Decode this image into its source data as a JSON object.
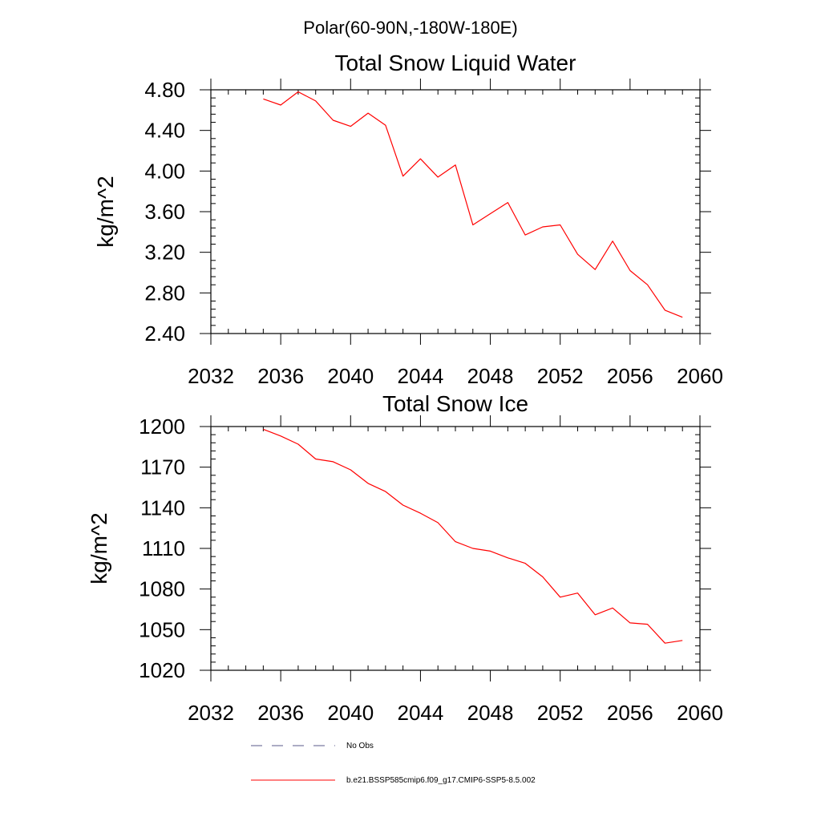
{
  "page_title": "Polar(60-90N,-180W-180E)",
  "chart_data": [
    {
      "type": "line",
      "title": "Total Snow Liquid Water",
      "xlabel": "",
      "ylabel": "kg/m^2",
      "xlim": [
        2032,
        2060
      ],
      "ylim": [
        2.4,
        4.8
      ],
      "xticks": [
        2032,
        2036,
        2040,
        2044,
        2048,
        2052,
        2056,
        2060
      ],
      "xtick_labels": [
        "2032",
        "2036",
        "2040",
        "2044",
        "2048",
        "2052",
        "2056",
        "2060"
      ],
      "yticks": [
        2.4,
        2.8,
        3.2,
        3.6,
        4.0,
        4.4,
        4.8
      ],
      "ytick_labels": [
        "2.40",
        "2.80",
        "3.20",
        "3.60",
        "4.00",
        "4.40",
        "4.80"
      ],
      "grid": false,
      "series": [
        {
          "name": "b.e21.BSSP585cmip6.f09_g17.CMIP6-SSP5-8.5.002",
          "color": "#ff0000",
          "x": [
            2035,
            2036,
            2037,
            2038,
            2039,
            2040,
            2041,
            2042,
            2043,
            2044,
            2045,
            2046,
            2047,
            2048,
            2049,
            2050,
            2051,
            2052,
            2053,
            2054,
            2055,
            2056,
            2057,
            2058,
            2059
          ],
          "values": [
            4.71,
            4.65,
            4.78,
            4.69,
            4.5,
            4.44,
            4.57,
            4.45,
            3.95,
            4.12,
            3.94,
            4.06,
            3.47,
            3.58,
            3.69,
            3.37,
            3.45,
            3.47,
            3.18,
            3.03,
            3.31,
            3.02,
            2.88,
            2.63,
            2.56
          ]
        }
      ]
    },
    {
      "type": "line",
      "title": "Total Snow Ice",
      "xlabel": "",
      "ylabel": "kg/m^2",
      "xlim": [
        2032,
        2060
      ],
      "ylim": [
        1020,
        1200
      ],
      "xticks": [
        2032,
        2036,
        2040,
        2044,
        2048,
        2052,
        2056,
        2060
      ],
      "xtick_labels": [
        "2032",
        "2036",
        "2040",
        "2044",
        "2048",
        "2052",
        "2056",
        "2060"
      ],
      "yticks": [
        1020,
        1050,
        1080,
        1110,
        1140,
        1170,
        1200
      ],
      "ytick_labels": [
        "1020",
        "1050",
        "1080",
        "1110",
        "1140",
        "1170",
        "1200"
      ],
      "grid": false,
      "series": [
        {
          "name": "b.e21.BSSP585cmip6.f09_g17.CMIP6-SSP5-8.5.002",
          "color": "#ff0000",
          "x": [
            2035,
            2036,
            2037,
            2038,
            2039,
            2040,
            2041,
            2042,
            2043,
            2044,
            2045,
            2046,
            2047,
            2048,
            2049,
            2050,
            2051,
            2052,
            2053,
            2054,
            2055,
            2056,
            2057,
            2058,
            2059
          ],
          "values": [
            1198,
            1193,
            1187,
            1176,
            1174,
            1168,
            1158,
            1152,
            1142,
            1136,
            1129,
            1115,
            1110,
            1108,
            1103,
            1099,
            1089,
            1074,
            1077,
            1061,
            1066,
            1055,
            1054,
            1040,
            1042
          ]
        }
      ]
    }
  ],
  "legend": {
    "placement": "bottom",
    "items": [
      {
        "label": "No Obs",
        "color": "#5a5a8a",
        "style": "dashed"
      },
      {
        "label": "b.e21.BSSP585cmip6.f09_g17.CMIP6-SSP5-8.5.002",
        "color": "#ff0000",
        "style": "solid"
      }
    ]
  }
}
